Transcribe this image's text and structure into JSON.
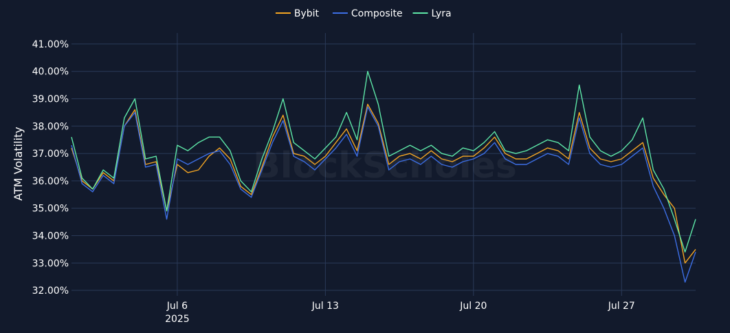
{
  "watermark": "BlockScholes",
  "chart_data": {
    "type": "line",
    "ylabel": "ATM Volatility",
    "y_tick_format": "percent_2dp",
    "ylim": [
      31.8,
      41.4
    ],
    "y_ticks": [
      32,
      33,
      34,
      35,
      36,
      37,
      38,
      39,
      40,
      41
    ],
    "x_start": "2025-07-01",
    "x_end": "2025-07-30T12:00",
    "x_ticks": [
      {
        "date": "2025-07-06",
        "label": "Jul 6",
        "sublabel": "2025"
      },
      {
        "date": "2025-07-13",
        "label": "Jul 13",
        "sublabel": ""
      },
      {
        "date": "2025-07-20",
        "label": "Jul 20",
        "sublabel": ""
      },
      {
        "date": "2025-07-27",
        "label": "Jul 27",
        "sublabel": ""
      }
    ],
    "legend_position": "top-center",
    "series": [
      {
        "name": "Bybit",
        "color": "#f5a623",
        "x": [
          "2025-07-01",
          "2025-07-01T12:00",
          "2025-07-02",
          "2025-07-02T12:00",
          "2025-07-03",
          "2025-07-03T12:00",
          "2025-07-04",
          "2025-07-04T12:00",
          "2025-07-05",
          "2025-07-05T12:00",
          "2025-07-06",
          "2025-07-06T12:00",
          "2025-07-07",
          "2025-07-07T12:00",
          "2025-07-08",
          "2025-07-08T12:00",
          "2025-07-09",
          "2025-07-09T12:00",
          "2025-07-10",
          "2025-07-10T12:00",
          "2025-07-11",
          "2025-07-11T12:00",
          "2025-07-12",
          "2025-07-12T12:00",
          "2025-07-13",
          "2025-07-13T12:00",
          "2025-07-14",
          "2025-07-14T12:00",
          "2025-07-15",
          "2025-07-15T12:00",
          "2025-07-16",
          "2025-07-16T12:00",
          "2025-07-17",
          "2025-07-17T12:00",
          "2025-07-18",
          "2025-07-18T12:00",
          "2025-07-19",
          "2025-07-19T12:00",
          "2025-07-20",
          "2025-07-20T12:00",
          "2025-07-21",
          "2025-07-21T12:00",
          "2025-07-22",
          "2025-07-22T12:00",
          "2025-07-23",
          "2025-07-23T12:00",
          "2025-07-24",
          "2025-07-24T12:00",
          "2025-07-25",
          "2025-07-25T12:00",
          "2025-07-26",
          "2025-07-26T12:00",
          "2025-07-27",
          "2025-07-27T12:00",
          "2025-07-28",
          "2025-07-28T12:00",
          "2025-07-29",
          "2025-07-29T12:00",
          "2025-07-30",
          "2025-07-30T12:00"
        ],
        "values": [
          37.2,
          36.0,
          35.7,
          36.3,
          36.0,
          38.0,
          38.6,
          36.6,
          36.7,
          34.9,
          36.6,
          36.3,
          36.4,
          36.9,
          37.2,
          36.8,
          35.8,
          35.5,
          36.5,
          37.6,
          38.4,
          37.0,
          36.9,
          36.6,
          36.9,
          37.4,
          37.9,
          37.1,
          38.8,
          38.1,
          36.6,
          36.9,
          37.0,
          36.8,
          37.1,
          36.8,
          36.7,
          36.9,
          36.9,
          37.2,
          37.6,
          37.0,
          36.8,
          36.8,
          37.0,
          37.2,
          37.1,
          36.8,
          38.5,
          37.2,
          36.8,
          36.7,
          36.8,
          37.1,
          37.4,
          36.1,
          35.5,
          35.0,
          33.0,
          33.5
        ]
      },
      {
        "name": "Composite",
        "color": "#3d6fe6",
        "x": [
          "2025-07-01",
          "2025-07-01T12:00",
          "2025-07-02",
          "2025-07-02T12:00",
          "2025-07-03",
          "2025-07-03T12:00",
          "2025-07-04",
          "2025-07-04T12:00",
          "2025-07-05",
          "2025-07-05T12:00",
          "2025-07-06",
          "2025-07-06T12:00",
          "2025-07-07",
          "2025-07-07T12:00",
          "2025-07-08",
          "2025-07-08T12:00",
          "2025-07-09",
          "2025-07-09T12:00",
          "2025-07-10",
          "2025-07-10T12:00",
          "2025-07-11",
          "2025-07-11T12:00",
          "2025-07-12",
          "2025-07-12T12:00",
          "2025-07-13",
          "2025-07-13T12:00",
          "2025-07-14",
          "2025-07-14T12:00",
          "2025-07-15",
          "2025-07-15T12:00",
          "2025-07-16",
          "2025-07-16T12:00",
          "2025-07-17",
          "2025-07-17T12:00",
          "2025-07-18",
          "2025-07-18T12:00",
          "2025-07-19",
          "2025-07-19T12:00",
          "2025-07-20",
          "2025-07-20T12:00",
          "2025-07-21",
          "2025-07-21T12:00",
          "2025-07-22",
          "2025-07-22T12:00",
          "2025-07-23",
          "2025-07-23T12:00",
          "2025-07-24",
          "2025-07-24T12:00",
          "2025-07-25",
          "2025-07-25T12:00",
          "2025-07-26",
          "2025-07-26T12:00",
          "2025-07-27",
          "2025-07-27T12:00",
          "2025-07-28",
          "2025-07-28T12:00",
          "2025-07-29",
          "2025-07-29T12:00",
          "2025-07-30",
          "2025-07-30T12:00"
        ],
        "values": [
          37.3,
          35.9,
          35.6,
          36.2,
          35.9,
          38.0,
          38.5,
          36.5,
          36.6,
          34.6,
          36.8,
          36.6,
          36.8,
          37.0,
          37.1,
          36.6,
          35.7,
          35.4,
          36.4,
          37.4,
          38.2,
          36.9,
          36.7,
          36.4,
          36.8,
          37.2,
          37.7,
          36.9,
          38.7,
          38.0,
          36.4,
          36.7,
          36.8,
          36.6,
          36.9,
          36.6,
          36.5,
          36.7,
          36.8,
          37.0,
          37.4,
          36.8,
          36.6,
          36.6,
          36.8,
          37.0,
          36.9,
          36.6,
          38.3,
          37.0,
          36.6,
          36.5,
          36.6,
          36.9,
          37.2,
          35.8,
          35.0,
          34.0,
          32.3,
          33.4
        ]
      },
      {
        "name": "Lyra",
        "color": "#5ee8a8",
        "x": [
          "2025-07-01",
          "2025-07-01T12:00",
          "2025-07-02",
          "2025-07-02T12:00",
          "2025-07-03",
          "2025-07-03T12:00",
          "2025-07-04",
          "2025-07-04T12:00",
          "2025-07-05",
          "2025-07-05T12:00",
          "2025-07-06",
          "2025-07-06T12:00",
          "2025-07-07",
          "2025-07-07T12:00",
          "2025-07-08",
          "2025-07-08T12:00",
          "2025-07-09",
          "2025-07-09T12:00",
          "2025-07-10",
          "2025-07-10T12:00",
          "2025-07-11",
          "2025-07-11T12:00",
          "2025-07-12",
          "2025-07-12T12:00",
          "2025-07-13",
          "2025-07-13T12:00",
          "2025-07-14",
          "2025-07-14T12:00",
          "2025-07-15",
          "2025-07-15T12:00",
          "2025-07-16",
          "2025-07-16T12:00",
          "2025-07-17",
          "2025-07-17T12:00",
          "2025-07-18",
          "2025-07-18T12:00",
          "2025-07-19",
          "2025-07-19T12:00",
          "2025-07-20",
          "2025-07-20T12:00",
          "2025-07-21",
          "2025-07-21T12:00",
          "2025-07-22",
          "2025-07-22T12:00",
          "2025-07-23",
          "2025-07-23T12:00",
          "2025-07-24",
          "2025-07-24T12:00",
          "2025-07-25",
          "2025-07-25T12:00",
          "2025-07-26",
          "2025-07-26T12:00",
          "2025-07-27",
          "2025-07-27T12:00",
          "2025-07-28",
          "2025-07-28T12:00",
          "2025-07-29",
          "2025-07-29T12:00",
          "2025-07-30",
          "2025-07-30T12:00"
        ],
        "values": [
          37.6,
          36.1,
          35.7,
          36.4,
          36.1,
          38.3,
          39.0,
          36.8,
          36.9,
          34.9,
          37.3,
          37.1,
          37.4,
          37.6,
          37.6,
          37.1,
          36.0,
          35.6,
          36.8,
          37.8,
          39.0,
          37.4,
          37.1,
          36.8,
          37.2,
          37.6,
          38.5,
          37.5,
          40.0,
          38.8,
          36.9,
          37.1,
          37.3,
          37.1,
          37.3,
          37.0,
          36.9,
          37.2,
          37.1,
          37.4,
          37.8,
          37.1,
          37.0,
          37.1,
          37.3,
          37.5,
          37.4,
          37.1,
          39.5,
          37.6,
          37.1,
          36.9,
          37.1,
          37.5,
          38.3,
          36.4,
          35.7,
          34.6,
          33.4,
          34.6
        ]
      }
    ]
  }
}
